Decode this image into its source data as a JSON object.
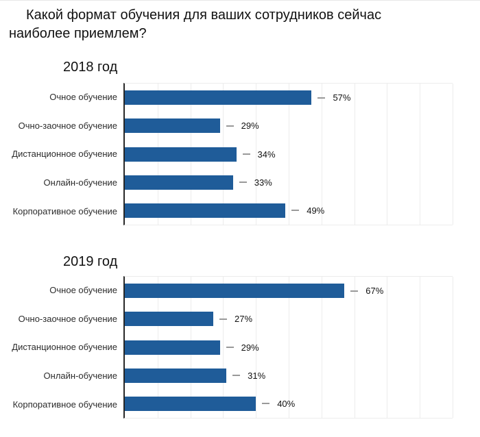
{
  "title": "Какой формат обучения для ваших сотрудников сейчас наиболее приемлем?",
  "colors": {
    "bar": "#1F5C99",
    "grid": "#ECECEC",
    "axis": "#262626",
    "dash": "#999999",
    "text": "#111111",
    "label": "#2B2B2B"
  },
  "chart_data": [
    {
      "type": "bar",
      "orientation": "horizontal",
      "title": "2018 год",
      "categories": [
        "Очное обучение",
        "Очно-заочное обучение",
        "Дистанционное обучение",
        "Онлайн-обучение",
        "Корпоративное обучение"
      ],
      "values": [
        57,
        29,
        34,
        33,
        49
      ],
      "value_labels": [
        "57%",
        "29%",
        "34%",
        "33%",
        "49%"
      ],
      "xlim": [
        0,
        100
      ],
      "grid_step": 10,
      "grid": true,
      "legend": false,
      "bar_color": "#1F5C99"
    },
    {
      "type": "bar",
      "orientation": "horizontal",
      "title": "2019 год",
      "categories": [
        "Очное обучение",
        "Очно-заочное обучение",
        "Дистанционное обучение",
        "Онлайн-обучение",
        "Корпоративное обучение"
      ],
      "values": [
        67,
        27,
        29,
        31,
        40
      ],
      "value_labels": [
        "67%",
        "27%",
        "29%",
        "31%",
        "40%"
      ],
      "xlim": [
        0,
        100
      ],
      "grid_step": 10,
      "grid": true,
      "legend": false,
      "bar_color": "#1F5C99"
    }
  ]
}
